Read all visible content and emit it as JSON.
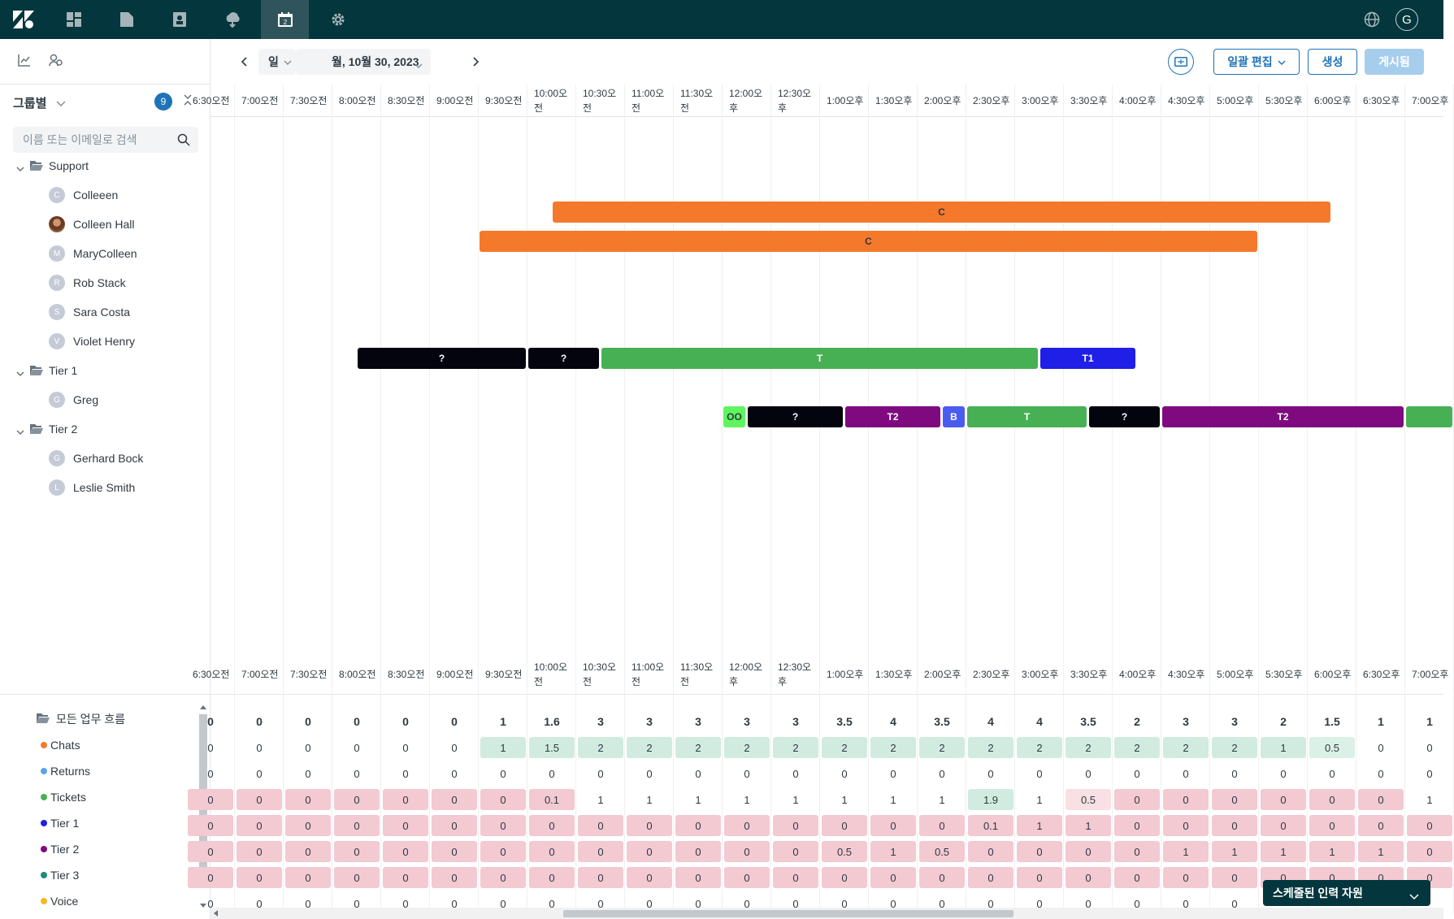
{
  "nav": {
    "items": [
      "zendesk-logo",
      "dashboard",
      "folder",
      "contact",
      "cloud",
      "calendar",
      "settings"
    ],
    "active": "calendar",
    "user_initial": "G",
    "colors": {
      "bg": "#03363d",
      "active": "#30545b"
    }
  },
  "left": {
    "group_label": "그룹별",
    "group_count": "9",
    "search_placeholder": "이름 또는 이메일로 검색",
    "groups": [
      {
        "name": "Support",
        "members": [
          {
            "initial": "C",
            "name": "Colleeen"
          },
          {
            "initial": "",
            "name": "Colleen Hall"
          },
          {
            "initial": "M",
            "name": "MaryColleen"
          },
          {
            "initial": "R",
            "name": "Rob Stack"
          },
          {
            "initial": "S",
            "name": "Sara Costa"
          },
          {
            "initial": "V",
            "name": "Violet Henry"
          }
        ]
      },
      {
        "name": "Tier 1",
        "members": [
          {
            "initial": "G",
            "name": "Greg"
          }
        ]
      },
      {
        "name": "Tier 2",
        "members": [
          {
            "initial": "G",
            "name": "Gerhard Bock"
          },
          {
            "initial": "L",
            "name": "Leslie Smith"
          }
        ]
      }
    ]
  },
  "toolbar": {
    "view": "일",
    "date": "월, 10월 30, 2023",
    "bulk_edit": "일괄 편집",
    "create": "생성",
    "publish": "게시됨"
  },
  "time_labels": [
    {
      "l1": "6:30오전",
      "l2": ""
    },
    {
      "l1": "7:00오전",
      "l2": ""
    },
    {
      "l1": "7:30오전",
      "l2": ""
    },
    {
      "l1": "8:00오전",
      "l2": ""
    },
    {
      "l1": "8:30오전",
      "l2": ""
    },
    {
      "l1": "9:00오전",
      "l2": ""
    },
    {
      "l1": "9:30오전",
      "l2": ""
    },
    {
      "l1": "10:00오",
      "l2": "전"
    },
    {
      "l1": "10:30오",
      "l2": "전"
    },
    {
      "l1": "11:00오",
      "l2": "전"
    },
    {
      "l1": "11:30오",
      "l2": "전"
    },
    {
      "l1": "12:00오",
      "l2": "후"
    },
    {
      "l1": "12:30오",
      "l2": "후"
    },
    {
      "l1": "1:00오후",
      "l2": ""
    },
    {
      "l1": "1:30오후",
      "l2": ""
    },
    {
      "l1": "2:00오후",
      "l2": ""
    },
    {
      "l1": "2:30오후",
      "l2": ""
    },
    {
      "l1": "3:00오후",
      "l2": ""
    },
    {
      "l1": "3:30오후",
      "l2": ""
    },
    {
      "l1": "4:00오후",
      "l2": ""
    },
    {
      "l1": "4:30오후",
      "l2": ""
    },
    {
      "l1": "5:00오후",
      "l2": ""
    },
    {
      "l1": "5:30오후",
      "l2": ""
    },
    {
      "l1": "6:00오후",
      "l2": ""
    },
    {
      "l1": "6:30오후",
      "l2": ""
    },
    {
      "l1": "7:00오후",
      "l2": ""
    }
  ],
  "shifts": [
    {
      "row": 1,
      "start": "10:15",
      "end": "18:15",
      "label": "C",
      "color": "#f5792a",
      "text": "#2f3941"
    },
    {
      "row": 2,
      "start": "9:30",
      "end": "17:30",
      "label": "C",
      "color": "#f5792a",
      "text": "#2f3941"
    },
    {
      "row": 6,
      "start": "8:15",
      "end": "10:00",
      "label": "?",
      "color": "#04040e",
      "text": "#ffffff"
    },
    {
      "row": 6,
      "start": "10:00",
      "end": "10:45",
      "label": "?",
      "color": "#04040e",
      "text": "#ffffff"
    },
    {
      "row": 6,
      "start": "10:45",
      "end": "15:15",
      "label": "T",
      "color": "#47b054",
      "text": "#ffffff"
    },
    {
      "row": 6,
      "start": "15:15",
      "end": "16:15",
      "label": "T1",
      "color": "#1f1fe8",
      "text": "#ffffff"
    },
    {
      "row": 8,
      "start": "12:00",
      "end": "12:15",
      "label": "OO",
      "color": "#5ef55e",
      "text": "#2f3941"
    },
    {
      "row": 8,
      "start": "12:15",
      "end": "13:15",
      "label": "?",
      "color": "#04040e",
      "text": "#ffffff"
    },
    {
      "row": 8,
      "start": "13:15",
      "end": "14:15",
      "label": "T2",
      "color": "#7f0a80",
      "text": "#ffffff"
    },
    {
      "row": 8,
      "start": "14:15",
      "end": "14:30",
      "label": "B",
      "color": "#4a5cf0",
      "text": "#ffffff"
    },
    {
      "row": 8,
      "start": "14:30",
      "end": "15:45",
      "label": "T",
      "color": "#47b054",
      "text": "#ffffff"
    },
    {
      "row": 8,
      "start": "15:45",
      "end": "16:30",
      "label": "?",
      "color": "#04040e",
      "text": "#ffffff"
    },
    {
      "row": 8,
      "start": "16:30",
      "end": "19:00",
      "label": "T2",
      "color": "#7f0a80",
      "text": "#ffffff"
    },
    {
      "row": 8,
      "start": "19:00",
      "end": "19:30",
      "label": "",
      "color": "#47b054",
      "text": "#ffffff"
    }
  ],
  "workstreams": {
    "title": "모든 업무 흐름",
    "items": [
      {
        "name": "Chats",
        "color": "#f5792a"
      },
      {
        "name": "Returns",
        "color": "#5aa4e8"
      },
      {
        "name": "Tickets",
        "color": "#47b054"
      },
      {
        "name": "Tier 1",
        "color": "#1f1fe8"
      },
      {
        "name": "Tier 2",
        "color": "#7f0a80"
      },
      {
        "name": "Tier 3",
        "color": "#1f8a7f"
      },
      {
        "name": "Voice",
        "color": "#f5b82a"
      }
    ]
  },
  "coverage": {
    "totals": [
      "0",
      "0",
      "0",
      "0",
      "0",
      "0",
      "1",
      "1.6",
      "3",
      "3",
      "3",
      "3",
      "3",
      "3.5",
      "4",
      "3.5",
      "4",
      "4",
      "3.5",
      "2",
      "3",
      "3",
      "2",
      "1.5",
      "1",
      "1"
    ],
    "rows": [
      {
        "values": [
          "0",
          "0",
          "0",
          "0",
          "0",
          "0",
          "1",
          "1.5",
          "2",
          "2",
          "2",
          "2",
          "2",
          "2",
          "2",
          "2",
          "2",
          "2",
          "2",
          "2",
          "2",
          "2",
          "1",
          "0.5",
          "0",
          "0"
        ],
        "styles": [
          "",
          "",
          "",
          "",
          "",
          "",
          "g",
          "g",
          "g",
          "g",
          "g",
          "g",
          "g",
          "g",
          "g",
          "g",
          "g",
          "g",
          "g",
          "g",
          "g",
          "g",
          "g",
          "lg",
          "",
          ""
        ]
      },
      {
        "values": [
          "0",
          "0",
          "0",
          "0",
          "0",
          "0",
          "0",
          "0",
          "0",
          "0",
          "0",
          "0",
          "0",
          "0",
          "0",
          "0",
          "0",
          "0",
          "0",
          "0",
          "0",
          "0",
          "0",
          "0",
          "0",
          "0"
        ],
        "styles": [
          "",
          "",
          "",
          "",
          "",
          "",
          "",
          "",
          "",
          "",
          "",
          "",
          "",
          "",
          "",
          "",
          "",
          "",
          "",
          "",
          "",
          "",
          "",
          "",
          "",
          ""
        ]
      },
      {
        "values": [
          "0",
          "0",
          "0",
          "0",
          "0",
          "0",
          "0",
          "0.1",
          "1",
          "1",
          "1",
          "1",
          "1",
          "1",
          "1",
          "1",
          "1.9",
          "1",
          "0.5",
          "0",
          "0",
          "0",
          "0",
          "0",
          "0",
          "1"
        ],
        "styles": [
          "r",
          "r",
          "r",
          "r",
          "r",
          "r",
          "r",
          "r",
          "",
          "",
          "",
          "",
          "",
          "",
          "",
          "",
          "g",
          "",
          "p",
          "r",
          "r",
          "r",
          "r",
          "r",
          "r",
          ""
        ]
      },
      {
        "values": [
          "0",
          "0",
          "0",
          "0",
          "0",
          "0",
          "0",
          "0",
          "0",
          "0",
          "0",
          "0",
          "0",
          "0",
          "0",
          "0",
          "0.1",
          "1",
          "1",
          "0",
          "0",
          "0",
          "0",
          "0",
          "0",
          "0"
        ],
        "styles": [
          "r",
          "r",
          "r",
          "r",
          "r",
          "r",
          "r",
          "r",
          "r",
          "r",
          "r",
          "r",
          "r",
          "r",
          "r",
          "r",
          "r",
          "r",
          "r",
          "r",
          "r",
          "r",
          "r",
          "r",
          "r",
          "r"
        ]
      },
      {
        "values": [
          "0",
          "0",
          "0",
          "0",
          "0",
          "0",
          "0",
          "0",
          "0",
          "0",
          "0",
          "0",
          "0",
          "0.5",
          "1",
          "0.5",
          "0",
          "0",
          "0",
          "0",
          "1",
          "1",
          "1",
          "1",
          "1",
          "0"
        ],
        "styles": [
          "r",
          "r",
          "r",
          "r",
          "r",
          "r",
          "r",
          "r",
          "r",
          "r",
          "r",
          "r",
          "r",
          "r",
          "r",
          "r",
          "r",
          "r",
          "r",
          "r",
          "r",
          "r",
          "r",
          "r",
          "r",
          "r"
        ]
      },
      {
        "values": [
          "0",
          "0",
          "0",
          "0",
          "0",
          "0",
          "0",
          "0",
          "0",
          "0",
          "0",
          "0",
          "0",
          "0",
          "0",
          "0",
          "0",
          "0",
          "0",
          "0",
          "0",
          "0",
          "0",
          "0",
          "0",
          "0"
        ],
        "styles": [
          "r",
          "r",
          "r",
          "r",
          "r",
          "r",
          "r",
          "r",
          "r",
          "r",
          "r",
          "r",
          "r",
          "r",
          "r",
          "r",
          "r",
          "r",
          "r",
          "r",
          "r",
          "r",
          "r",
          "r",
          "r",
          "r"
        ]
      },
      {
        "values": [
          "0",
          "0",
          "0",
          "0",
          "0",
          "0",
          "0",
          "0",
          "0",
          "0",
          "0",
          "0",
          "0",
          "0",
          "0",
          "0",
          "0",
          "0",
          "0",
          "0",
          "0",
          "0",
          "",
          "",
          "",
          ""
        ],
        "styles": [
          "",
          "",
          "",
          "",
          "",
          "",
          "",
          "",
          "",
          "",
          "",
          "",
          "",
          "",
          "",
          "",
          "",
          "",
          "",
          "",
          "",
          "",
          "",
          "",
          "",
          ""
        ]
      }
    ]
  },
  "staff_button": "스케줄된 인력 자원"
}
